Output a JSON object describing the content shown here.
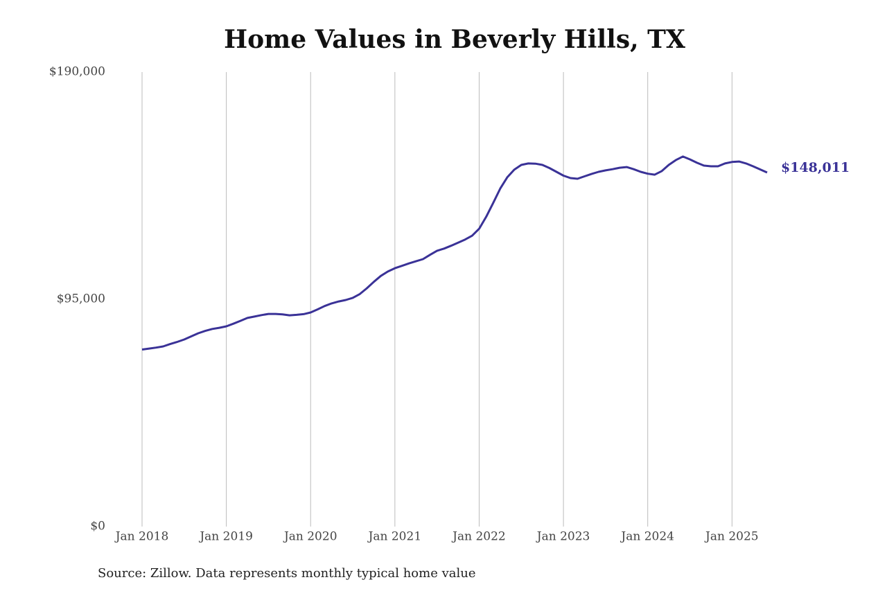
{
  "chart_data": {
    "type": "line",
    "title": "Home Values in Beverly Hills, TX",
    "source": "Source: Zillow. Data represents monthly typical home value",
    "x": [
      "2018-01",
      "2018-02",
      "2018-03",
      "2018-04",
      "2018-05",
      "2018-06",
      "2018-07",
      "2018-08",
      "2018-09",
      "2018-10",
      "2018-11",
      "2018-12",
      "2019-01",
      "2019-02",
      "2019-03",
      "2019-04",
      "2019-05",
      "2019-06",
      "2019-07",
      "2019-08",
      "2019-09",
      "2019-10",
      "2019-11",
      "2019-12",
      "2020-01",
      "2020-02",
      "2020-03",
      "2020-04",
      "2020-05",
      "2020-06",
      "2020-07",
      "2020-08",
      "2020-09",
      "2020-10",
      "2020-11",
      "2020-12",
      "2021-01",
      "2021-02",
      "2021-03",
      "2021-04",
      "2021-05",
      "2021-06",
      "2021-07",
      "2021-08",
      "2021-09",
      "2021-10",
      "2021-11",
      "2021-12",
      "2022-01",
      "2022-02",
      "2022-03",
      "2022-04",
      "2022-05",
      "2022-06",
      "2022-07",
      "2022-08",
      "2022-09",
      "2022-10",
      "2022-11",
      "2022-12",
      "2023-01",
      "2023-02",
      "2023-03",
      "2023-04",
      "2023-05",
      "2023-06",
      "2023-07",
      "2023-08",
      "2023-09",
      "2023-10",
      "2023-11",
      "2023-12",
      "2024-01",
      "2024-02",
      "2024-03",
      "2024-04",
      "2024-05",
      "2024-06",
      "2024-07",
      "2024-08",
      "2024-09",
      "2024-10",
      "2024-11",
      "2024-12",
      "2025-01",
      "2025-02",
      "2025-03",
      "2025-04",
      "2025-05",
      "2025-06"
    ],
    "series": [
      {
        "name": "Home value",
        "color": "#3a3297",
        "values": [
          74000,
          74400,
          74800,
          75300,
          76300,
          77200,
          78200,
          79500,
          80800,
          81800,
          82600,
          83100,
          83700,
          84800,
          86000,
          87200,
          87800,
          88400,
          88900,
          88900,
          88700,
          88300,
          88500,
          88800,
          89500,
          90800,
          92200,
          93300,
          94100,
          94700,
          95600,
          97200,
          99600,
          102300,
          104800,
          106600,
          108000,
          109000,
          110000,
          110900,
          111800,
          113600,
          115300,
          116200,
          117400,
          118700,
          120000,
          121600,
          124500,
          129500,
          135300,
          141300,
          146000,
          149200,
          151200,
          151800,
          151700,
          151200,
          149900,
          148300,
          146700,
          145700,
          145400,
          146400,
          147400,
          148300,
          148900,
          149400,
          150000,
          150300,
          149400,
          148300,
          147500,
          147100,
          148600,
          151200,
          153200,
          154700,
          153500,
          152100,
          150900,
          150600,
          150600,
          151800,
          152400,
          152600,
          151800,
          150600,
          149300,
          148011
        ],
        "last_value_label": "$148,011"
      }
    ],
    "xlim": [
      "2018-01",
      "2025-06"
    ],
    "xticks": [
      {
        "value": "2018-01",
        "label": "Jan 2018"
      },
      {
        "value": "2019-01",
        "label": "Jan 2019"
      },
      {
        "value": "2020-01",
        "label": "Jan 2020"
      },
      {
        "value": "2021-01",
        "label": "Jan 2021"
      },
      {
        "value": "2022-01",
        "label": "Jan 2022"
      },
      {
        "value": "2023-01",
        "label": "Jan 2023"
      },
      {
        "value": "2024-01",
        "label": "Jan 2024"
      },
      {
        "value": "2025-01",
        "label": "Jan 2025"
      }
    ],
    "ylim": [
      0,
      190000
    ],
    "yticks": [
      {
        "value": 0,
        "label": "$0"
      },
      {
        "value": 95000,
        "label": "$95,000"
      },
      {
        "value": 190000,
        "label": "$190,000"
      }
    ],
    "grid": "x"
  }
}
